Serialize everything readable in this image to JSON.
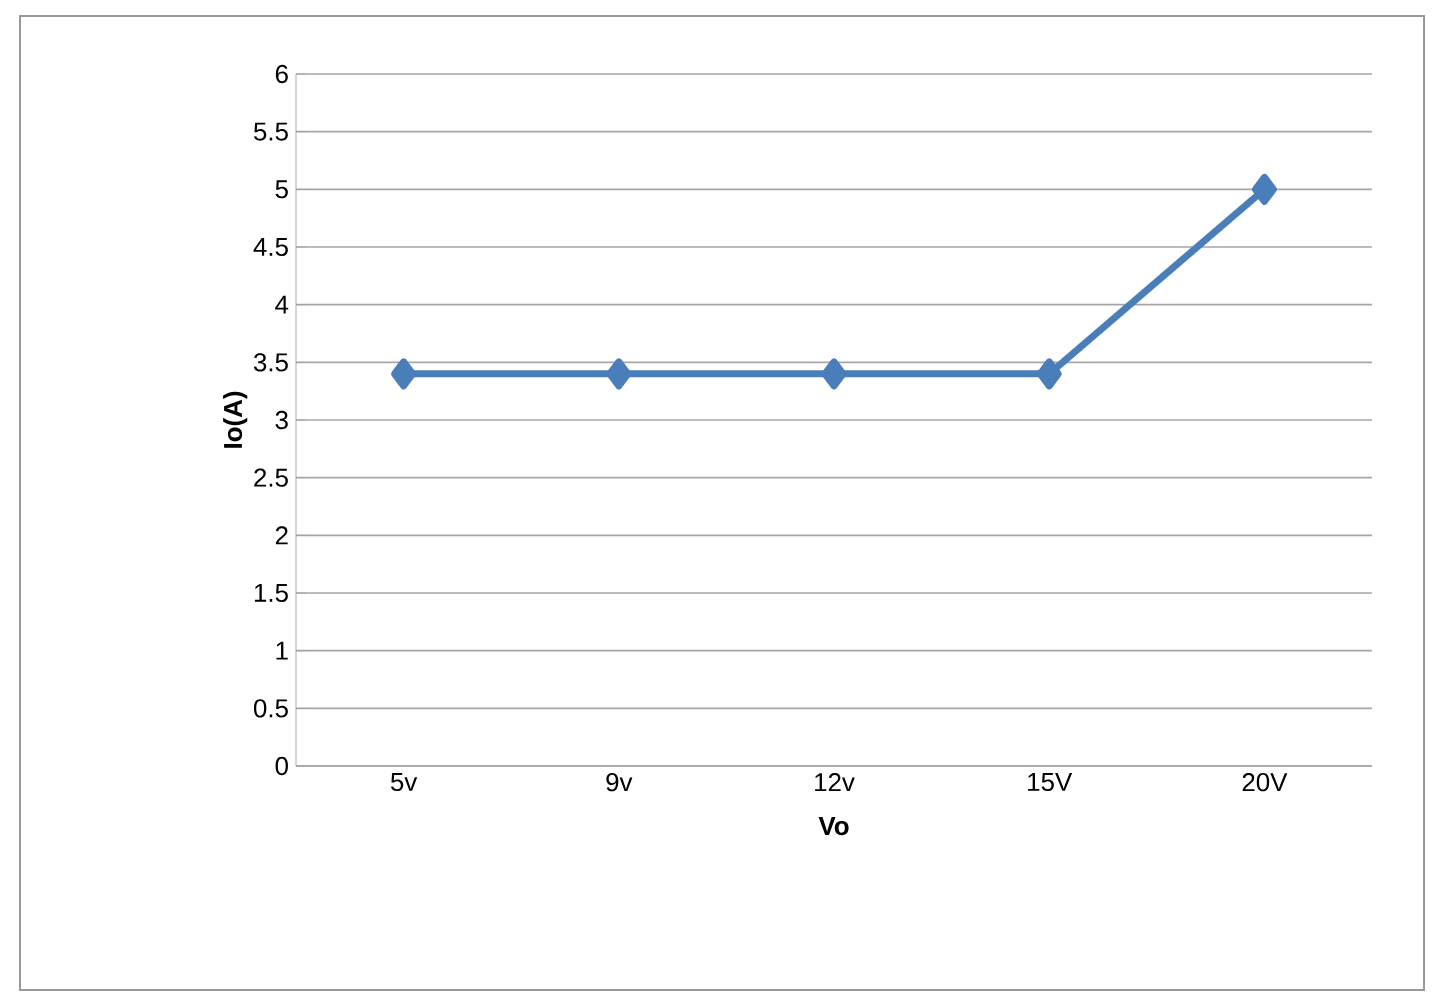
{
  "chart_data": {
    "type": "line",
    "xlabel": "Vo",
    "ylabel": "Io(A)",
    "categories": [
      "5v",
      "9v",
      "12v",
      "15V",
      "20V"
    ],
    "series": [
      {
        "color": "#4a7ebb",
        "values": [
          3.4,
          3.4,
          3.4,
          3.4,
          5
        ]
      }
    ],
    "ylim": [
      0,
      6
    ],
    "yticks": [
      0,
      0.5,
      1,
      1.5,
      2,
      2.5,
      3,
      3.5,
      4,
      4.5,
      5,
      5.5,
      6
    ],
    "grid": "y",
    "marker": "diamond",
    "line_style": "solid"
  }
}
